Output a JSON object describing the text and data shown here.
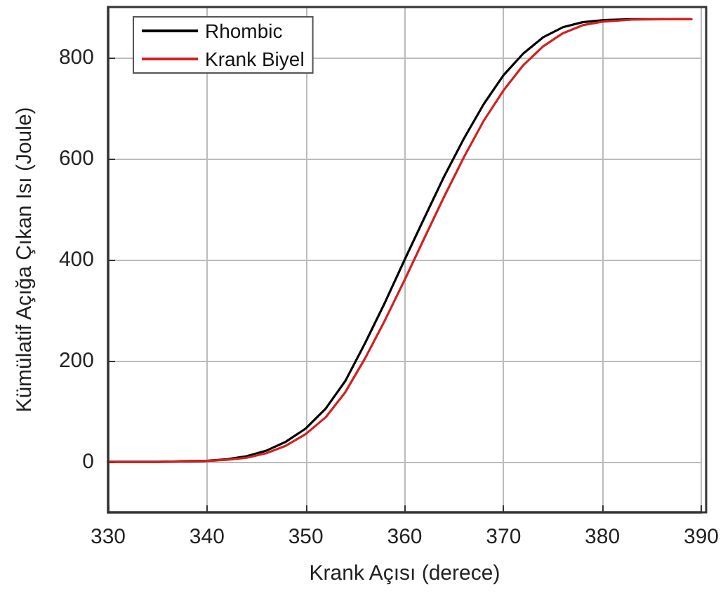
{
  "chart_data": {
    "type": "line",
    "xlabel": "Krank Açısı (derece)",
    "ylabel": "Kümülatif Açığa Çıkan Isı (Joule)",
    "x": [
      330,
      335,
      340,
      342,
      344,
      346,
      348,
      350,
      352,
      354,
      356,
      358,
      360,
      362,
      364,
      366,
      368,
      370,
      372,
      374,
      376,
      378,
      380,
      383,
      386,
      389
    ],
    "series": [
      {
        "name": "Rhombic",
        "color": "#000000",
        "values": [
          0,
          0,
          2,
          5,
          11,
          22,
          40,
          66,
          105,
          160,
          235,
          315,
          400,
          483,
          565,
          640,
          708,
          765,
          808,
          840,
          860,
          870,
          874,
          876,
          876,
          876
        ]
      },
      {
        "name": "Krank Biyel",
        "color": "#d42020",
        "values": [
          0,
          0,
          2,
          4,
          8,
          17,
          32,
          55,
          88,
          138,
          205,
          280,
          360,
          443,
          525,
          603,
          675,
          735,
          785,
          822,
          848,
          864,
          871,
          875,
          876,
          876
        ]
      }
    ],
    "xlim": [
      330,
      390
    ],
    "xticks": [
      330,
      340,
      350,
      360,
      370,
      380,
      390
    ],
    "ylim": [
      -100,
      900
    ],
    "yticks": [
      0,
      200,
      400,
      600,
      800
    ],
    "grid": true,
    "legend": "top left",
    "marker": "none",
    "line_style": "solid"
  }
}
